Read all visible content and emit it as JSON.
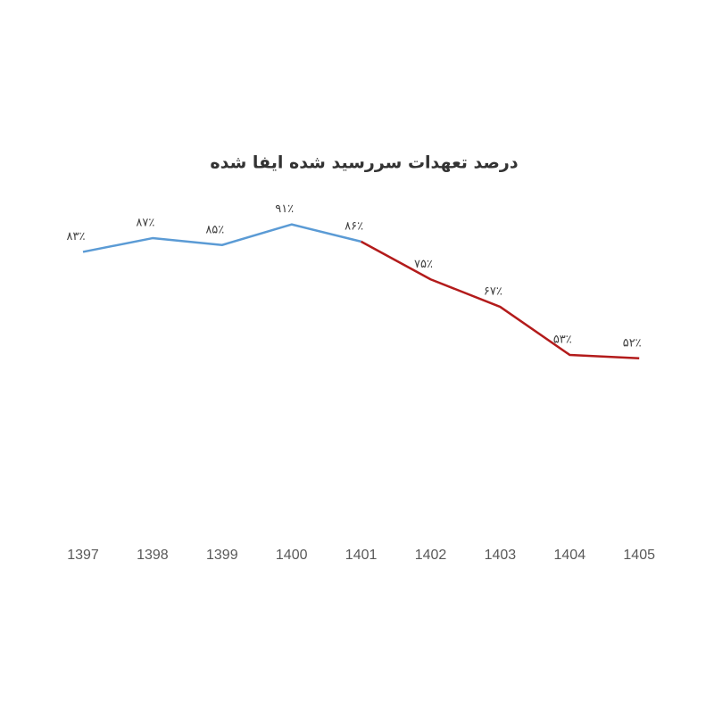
{
  "chart_data": {
    "type": "line",
    "title": "درصد تعهدات سررسید شده ایفا شده",
    "categories": [
      "1397",
      "1398",
      "1399",
      "1400",
      "1401",
      "1402",
      "1403",
      "1404",
      "1405"
    ],
    "ylim": [
      0,
      100
    ],
    "series": [
      {
        "color": "#5b9bd5",
        "values": [
          83,
          87,
          85,
          91,
          86,
          null,
          null,
          null,
          null
        ],
        "value_labels": [
          "۸۳٪",
          "۸۷٪",
          "۸۵٪",
          "۹۱٪",
          "۸۶٪",
          null,
          null,
          null,
          null
        ]
      },
      {
        "color": "#b31b1b",
        "values": [
          null,
          null,
          null,
          null,
          86,
          75,
          67,
          53,
          52
        ],
        "value_labels": [
          null,
          null,
          null,
          null,
          null,
          "۷۵٪",
          "۶۷٪",
          "۵۳٪",
          "۵۲٪"
        ]
      }
    ]
  }
}
